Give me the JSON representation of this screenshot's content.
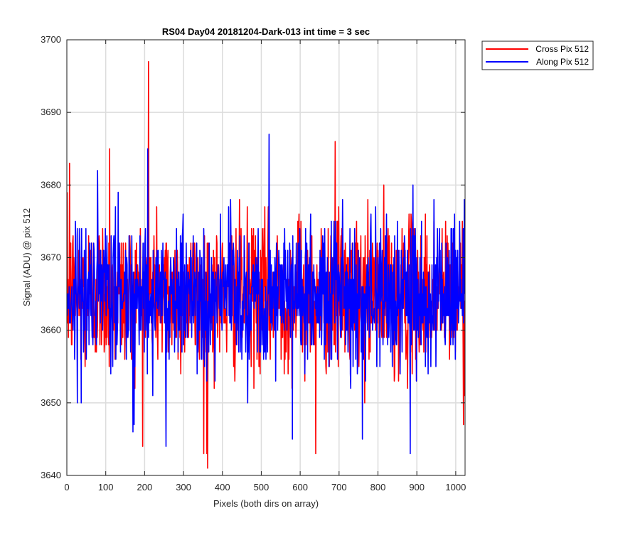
{
  "chart_data": {
    "type": "line",
    "title": "RS04 Day04 20181204-Dark-013 int time = 3 sec",
    "xlabel": "Pixels (both dirs on array)",
    "ylabel": "Signal (ADU) @ pix 512",
    "xlim": [
      0,
      1024
    ],
    "ylim": [
      3640,
      3700
    ],
    "xticks": [
      0,
      100,
      200,
      300,
      400,
      500,
      600,
      700,
      800,
      900,
      1000
    ],
    "yticks": [
      3640,
      3650,
      3660,
      3670,
      3680,
      3690,
      3700
    ],
    "grid": true,
    "legend_position": "outside-top-right",
    "x": {
      "start": 1,
      "end": 1024,
      "step": 1
    },
    "series": [
      {
        "name": "Cross Pix 512",
        "color": "#ff0000",
        "mean": 3665,
        "std": 5.2,
        "min": 3641,
        "max": 3697,
        "notable_points": [
          {
            "x": 210,
            "y": 3697
          },
          {
            "x": 213,
            "y": 3670
          },
          {
            "x": 352,
            "y": 3643
          },
          {
            "x": 362,
            "y": 3641
          },
          {
            "x": 690,
            "y": 3686
          },
          {
            "x": 640,
            "y": 3643
          },
          {
            "x": 7,
            "y": 3683
          },
          {
            "x": 110,
            "y": 3685
          },
          {
            "x": 1020,
            "y": 3647
          }
        ]
      },
      {
        "name": "Along Pix 512",
        "color": "#0000ff",
        "mean": 3665,
        "std": 5.0,
        "min": 3643,
        "max": 3687,
        "notable_points": [
          {
            "x": 208,
            "y": 3685
          },
          {
            "x": 520,
            "y": 3687
          },
          {
            "x": 255,
            "y": 3644
          },
          {
            "x": 883,
            "y": 3643
          },
          {
            "x": 170,
            "y": 3646
          },
          {
            "x": 580,
            "y": 3645
          },
          {
            "x": 760,
            "y": 3645
          }
        ]
      }
    ]
  }
}
